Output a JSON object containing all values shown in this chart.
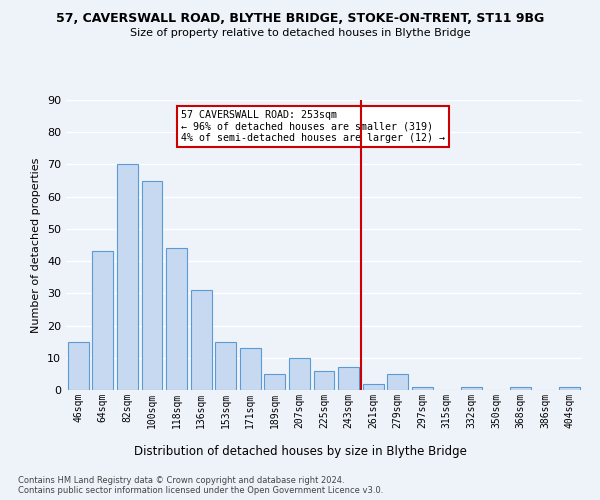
{
  "title1": "57, CAVERSWALL ROAD, BLYTHE BRIDGE, STOKE-ON-TRENT, ST11 9BG",
  "title2": "Size of property relative to detached houses in Blythe Bridge",
  "xlabel": "Distribution of detached houses by size in Blythe Bridge",
  "ylabel": "Number of detached properties",
  "footer": "Contains HM Land Registry data © Crown copyright and database right 2024.\nContains public sector information licensed under the Open Government Licence v3.0.",
  "categories": [
    "46sqm",
    "64sqm",
    "82sqm",
    "100sqm",
    "118sqm",
    "136sqm",
    "153sqm",
    "171sqm",
    "189sqm",
    "207sqm",
    "225sqm",
    "243sqm",
    "261sqm",
    "279sqm",
    "297sqm",
    "315sqm",
    "332sqm",
    "350sqm",
    "368sqm",
    "386sqm",
    "404sqm"
  ],
  "values": [
    15,
    43,
    70,
    65,
    44,
    31,
    15,
    13,
    5,
    10,
    6,
    7,
    2,
    5,
    1,
    0,
    1,
    0,
    1,
    0,
    1
  ],
  "bar_color": "#c6d9f0",
  "bar_edge_color": "#5b9bd5",
  "vline_pos": 11.5,
  "vline_label": "57 CAVERSWALL ROAD: 253sqm",
  "annotation_line2": "← 96% of detached houses are smaller (319)",
  "annotation_line3": "4% of semi-detached houses are larger (12) →",
  "annotation_box_color": "#cc0000",
  "background_color": "#eef2f9",
  "grid_color": "#ffffff",
  "ylim": [
    0,
    90
  ],
  "yticks": [
    0,
    10,
    20,
    30,
    40,
    50,
    60,
    70,
    80,
    90
  ]
}
